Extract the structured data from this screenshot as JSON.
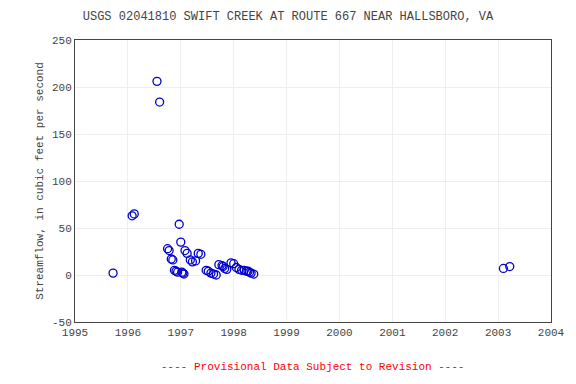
{
  "chart_data": {
    "type": "scatter",
    "title": "USGS 02041810 SWIFT CREEK AT ROUTE 667 NEAR HALLSBORO, VA",
    "ylabel": "Streamflow, in cubic feet per second",
    "annotations": [
      {
        "text": "---- Provisional Data Subject to Revision ----",
        "color": "#ff0000"
      }
    ],
    "x": [
      1995.72,
      1996.08,
      1996.12,
      1996.55,
      1996.6,
      1996.75,
      1996.78,
      1996.82,
      1996.85,
      1996.88,
      1996.91,
      1996.94,
      1996.97,
      1997.0,
      1997.02,
      1997.04,
      1997.06,
      1997.08,
      1997.12,
      1997.18,
      1997.22,
      1997.28,
      1997.33,
      1997.38,
      1997.48,
      1997.52,
      1997.57,
      1997.62,
      1997.67,
      1997.72,
      1997.78,
      1997.8,
      1997.83,
      1997.87,
      1997.95,
      1998.0,
      1998.05,
      1998.1,
      1998.15,
      1998.2,
      1998.24,
      1998.27,
      1998.3,
      1998.33,
      1998.38,
      2003.1,
      2003.22
    ],
    "values": [
      2,
      63,
      65,
      206,
      184,
      28,
      26,
      17,
      16,
      5,
      4,
      3,
      54,
      35,
      3,
      2,
      1,
      26,
      23,
      16,
      14,
      15,
      23,
      22,
      5,
      4,
      2,
      1,
      0,
      11,
      10,
      9,
      7,
      6,
      13,
      12,
      8,
      6,
      5,
      5,
      4,
      4,
      3,
      2,
      1,
      7,
      9
    ],
    "color": "#0000cc",
    "marker": "circle-open",
    "xlim": [
      1995,
      2004
    ],
    "ylim": [
      -50,
      250
    ],
    "xticks": [
      1995,
      1996,
      1997,
      1998,
      1999,
      2000,
      2001,
      2002,
      2003,
      2004
    ],
    "yticks": [
      -50,
      0,
      50,
      100,
      150,
      200,
      250
    ],
    "grid": true
  }
}
